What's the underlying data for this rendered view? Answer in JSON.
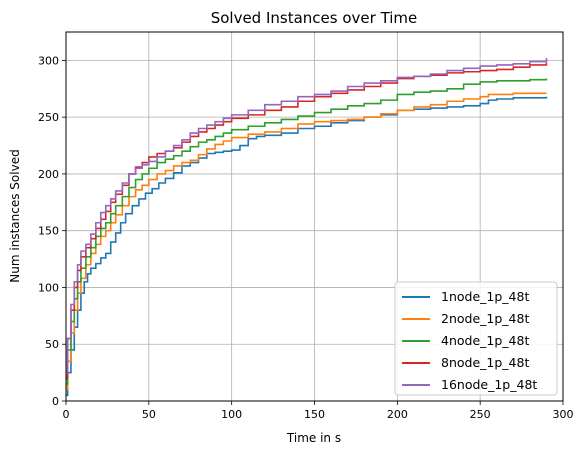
{
  "chart_data": {
    "type": "line",
    "title": "Solved Instances over Time",
    "xlabel": "Time in s",
    "ylabel": "Num instances Solved",
    "xlim": [
      0,
      300
    ],
    "ylim": [
      0,
      325
    ],
    "xticks": [
      0,
      50,
      100,
      150,
      200,
      250,
      300
    ],
    "yticks": [
      0,
      50,
      100,
      150,
      200,
      250,
      300
    ],
    "grid": true,
    "legend_position": "bottom-right",
    "series": [
      {
        "name": "1node_1p_48t",
        "color": "#1f77b4",
        "points": [
          [
            0,
            5
          ],
          [
            1,
            25
          ],
          [
            3,
            45
          ],
          [
            5,
            65
          ],
          [
            7,
            80
          ],
          [
            9,
            95
          ],
          [
            11,
            105
          ],
          [
            13,
            112
          ],
          [
            15,
            117
          ],
          [
            18,
            121
          ],
          [
            21,
            126
          ],
          [
            24,
            130
          ],
          [
            27,
            140
          ],
          [
            30,
            148
          ],
          [
            33,
            157
          ],
          [
            36,
            165
          ],
          [
            40,
            172
          ],
          [
            44,
            178
          ],
          [
            48,
            183
          ],
          [
            52,
            187
          ],
          [
            56,
            192
          ],
          [
            60,
            196
          ],
          [
            65,
            201
          ],
          [
            70,
            207
          ],
          [
            75,
            210
          ],
          [
            80,
            214
          ],
          [
            85,
            218
          ],
          [
            90,
            219
          ],
          [
            95,
            220
          ],
          [
            100,
            221
          ],
          [
            105,
            225
          ],
          [
            110,
            231
          ],
          [
            115,
            233
          ],
          [
            120,
            234
          ],
          [
            130,
            236
          ],
          [
            140,
            240
          ],
          [
            150,
            242
          ],
          [
            160,
            245
          ],
          [
            170,
            247
          ],
          [
            180,
            250
          ],
          [
            190,
            252
          ],
          [
            200,
            256
          ],
          [
            210,
            257
          ],
          [
            220,
            258
          ],
          [
            230,
            259
          ],
          [
            240,
            260
          ],
          [
            250,
            262
          ],
          [
            255,
            265
          ],
          [
            260,
            266
          ],
          [
            270,
            267
          ],
          [
            280,
            267
          ],
          [
            290,
            268
          ]
        ]
      },
      {
        "name": "2node_1p_48t",
        "color": "#ff7f0e",
        "points": [
          [
            0,
            10
          ],
          [
            1,
            35
          ],
          [
            3,
            60
          ],
          [
            5,
            80
          ],
          [
            7,
            95
          ],
          [
            9,
            108
          ],
          [
            12,
            120
          ],
          [
            15,
            130
          ],
          [
            18,
            138
          ],
          [
            21,
            145
          ],
          [
            24,
            150
          ],
          [
            27,
            157
          ],
          [
            30,
            164
          ],
          [
            34,
            172
          ],
          [
            38,
            180
          ],
          [
            42,
            186
          ],
          [
            46,
            190
          ],
          [
            50,
            195
          ],
          [
            55,
            200
          ],
          [
            60,
            203
          ],
          [
            65,
            207
          ],
          [
            70,
            210
          ],
          [
            75,
            212
          ],
          [
            80,
            217
          ],
          [
            85,
            222
          ],
          [
            90,
            226
          ],
          [
            95,
            229
          ],
          [
            100,
            232
          ],
          [
            110,
            235
          ],
          [
            120,
            237
          ],
          [
            130,
            240
          ],
          [
            140,
            244
          ],
          [
            150,
            246
          ],
          [
            160,
            247
          ],
          [
            170,
            248
          ],
          [
            180,
            250
          ],
          [
            190,
            253
          ],
          [
            200,
            256
          ],
          [
            210,
            259
          ],
          [
            220,
            261
          ],
          [
            230,
            264
          ],
          [
            240,
            266
          ],
          [
            250,
            268
          ],
          [
            255,
            270
          ],
          [
            260,
            270
          ],
          [
            270,
            271
          ],
          [
            280,
            271
          ],
          [
            290,
            271
          ]
        ]
      },
      {
        "name": "4node_1p_48t",
        "color": "#2ca02c",
        "points": [
          [
            0,
            15
          ],
          [
            1,
            45
          ],
          [
            3,
            70
          ],
          [
            5,
            90
          ],
          [
            7,
            105
          ],
          [
            9,
            117
          ],
          [
            12,
            127
          ],
          [
            15,
            135
          ],
          [
            18,
            145
          ],
          [
            21,
            152
          ],
          [
            24,
            157
          ],
          [
            27,
            165
          ],
          [
            30,
            172
          ],
          [
            34,
            180
          ],
          [
            38,
            188
          ],
          [
            42,
            195
          ],
          [
            46,
            200
          ],
          [
            50,
            205
          ],
          [
            55,
            210
          ],
          [
            60,
            213
          ],
          [
            65,
            216
          ],
          [
            70,
            220
          ],
          [
            75,
            224
          ],
          [
            80,
            228
          ],
          [
            85,
            230
          ],
          [
            90,
            233
          ],
          [
            95,
            236
          ],
          [
            100,
            239
          ],
          [
            110,
            242
          ],
          [
            120,
            245
          ],
          [
            130,
            248
          ],
          [
            140,
            251
          ],
          [
            150,
            254
          ],
          [
            160,
            257
          ],
          [
            170,
            260
          ],
          [
            180,
            262
          ],
          [
            190,
            265
          ],
          [
            200,
            270
          ],
          [
            210,
            272
          ],
          [
            220,
            273
          ],
          [
            230,
            275
          ],
          [
            240,
            279
          ],
          [
            250,
            281
          ],
          [
            260,
            282
          ],
          [
            270,
            282
          ],
          [
            280,
            283
          ],
          [
            290,
            284
          ]
        ]
      },
      {
        "name": "8node_1p_48t",
        "color": "#d62728",
        "points": [
          [
            0,
            20
          ],
          [
            1,
            55
          ],
          [
            3,
            80
          ],
          [
            5,
            100
          ],
          [
            7,
            115
          ],
          [
            9,
            127
          ],
          [
            12,
            135
          ],
          [
            15,
            143
          ],
          [
            18,
            152
          ],
          [
            21,
            160
          ],
          [
            24,
            167
          ],
          [
            27,
            175
          ],
          [
            30,
            182
          ],
          [
            34,
            190
          ],
          [
            38,
            200
          ],
          [
            42,
            206
          ],
          [
            46,
            210
          ],
          [
            50,
            215
          ],
          [
            55,
            218
          ],
          [
            60,
            220
          ],
          [
            65,
            223
          ],
          [
            70,
            228
          ],
          [
            75,
            233
          ],
          [
            80,
            237
          ],
          [
            85,
            240
          ],
          [
            90,
            243
          ],
          [
            95,
            246
          ],
          [
            100,
            249
          ],
          [
            110,
            252
          ],
          [
            120,
            256
          ],
          [
            130,
            259
          ],
          [
            140,
            264
          ],
          [
            150,
            268
          ],
          [
            160,
            271
          ],
          [
            170,
            274
          ],
          [
            180,
            277
          ],
          [
            190,
            280
          ],
          [
            200,
            284
          ],
          [
            210,
            286
          ],
          [
            220,
            287
          ],
          [
            230,
            289
          ],
          [
            240,
            290
          ],
          [
            250,
            291
          ],
          [
            260,
            292
          ],
          [
            270,
            294
          ],
          [
            280,
            296
          ],
          [
            290,
            298
          ]
        ]
      },
      {
        "name": "16node_1p_48t",
        "color": "#9467bd",
        "points": [
          [
            0,
            25
          ],
          [
            1,
            55
          ],
          [
            3,
            85
          ],
          [
            5,
            105
          ],
          [
            7,
            120
          ],
          [
            9,
            132
          ],
          [
            12,
            138
          ],
          [
            15,
            147
          ],
          [
            18,
            157
          ],
          [
            21,
            166
          ],
          [
            24,
            172
          ],
          [
            27,
            178
          ],
          [
            30,
            185
          ],
          [
            34,
            192
          ],
          [
            38,
            200
          ],
          [
            42,
            205
          ],
          [
            46,
            208
          ],
          [
            50,
            211
          ],
          [
            55,
            215
          ],
          [
            60,
            220
          ],
          [
            65,
            225
          ],
          [
            70,
            230
          ],
          [
            75,
            236
          ],
          [
            80,
            240
          ],
          [
            85,
            243
          ],
          [
            90,
            246
          ],
          [
            95,
            249
          ],
          [
            100,
            252
          ],
          [
            110,
            256
          ],
          [
            120,
            261
          ],
          [
            130,
            264
          ],
          [
            140,
            268
          ],
          [
            150,
            270
          ],
          [
            160,
            273
          ],
          [
            170,
            277
          ],
          [
            180,
            280
          ],
          [
            190,
            282
          ],
          [
            200,
            285
          ],
          [
            210,
            286
          ],
          [
            220,
            288
          ],
          [
            230,
            291
          ],
          [
            240,
            293
          ],
          [
            250,
            295
          ],
          [
            260,
            296
          ],
          [
            270,
            297
          ],
          [
            280,
            299
          ],
          [
            290,
            302
          ]
        ]
      }
    ]
  }
}
